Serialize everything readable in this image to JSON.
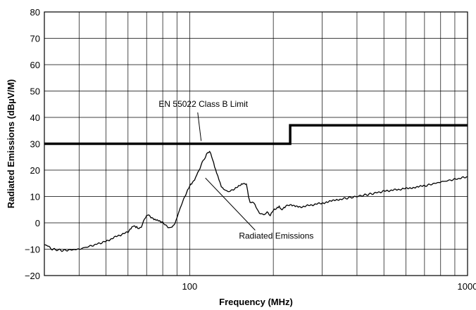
{
  "chart_data": {
    "type": "line",
    "xscale": "log",
    "xlim": [
      30,
      1000
    ],
    "ylim": [
      -20,
      80
    ],
    "grid": true,
    "xlabel": "Frequency (MHz)",
    "ylabel": "Radiated Emissions (dBµV/M)",
    "xticks": [
      100,
      1000
    ],
    "xtick_labels": [
      "100",
      "1000"
    ],
    "yticks": [
      -20,
      -10,
      0,
      10,
      20,
      30,
      40,
      50,
      60,
      70,
      80
    ],
    "ytick_labels": [
      "−20",
      "−10",
      "0",
      "10",
      "20",
      "30",
      "40",
      "50",
      "60",
      "70",
      "80"
    ],
    "series": [
      {
        "name": "EN 55022 Class B Limit",
        "style": "thick-step",
        "x": [
          30,
          230,
          230,
          1000
        ],
        "y": [
          30,
          30,
          37,
          37
        ]
      },
      {
        "name": "Radiated Emissions",
        "style": "thin-noisy",
        "x": [
          30,
          32,
          35,
          40,
          45,
          50,
          55,
          60,
          63,
          65,
          67,
          70,
          72,
          75,
          78,
          80,
          85,
          88,
          90,
          95,
          100,
          105,
          110,
          115,
          118,
          120,
          125,
          130,
          135,
          140,
          145,
          150,
          155,
          160,
          163,
          165,
          170,
          175,
          180,
          185,
          190,
          195,
          200,
          205,
          210,
          215,
          220,
          230,
          250,
          300,
          350,
          400,
          450,
          500,
          600,
          700,
          800,
          900,
          1000
        ],
        "y": [
          -8,
          -10,
          -10.5,
          -10,
          -8.5,
          -7,
          -5,
          -3.5,
          -1,
          -2,
          -1.5,
          3,
          2.5,
          1,
          0.5,
          0,
          -2,
          -1,
          2,
          9,
          14,
          17,
          22,
          26,
          27,
          25,
          19,
          14,
          12,
          12,
          13,
          14,
          15,
          14.5,
          10,
          7.5,
          7.5,
          5,
          3.5,
          3,
          4,
          3,
          5,
          5.5,
          6,
          5,
          6,
          7,
          6,
          7.5,
          9,
          10,
          11,
          12,
          13,
          14,
          15.5,
          16.5,
          17.5
        ]
      }
    ],
    "annotations": [
      {
        "text": "EN 55022 Class B Limit",
        "x": 112,
        "y": 44,
        "arrow_to": [
          110,
          30
        ]
      },
      {
        "text": "Radiated Emissions",
        "x": 205,
        "y": -6,
        "arrow_to": [
          110,
          17
        ]
      }
    ]
  }
}
